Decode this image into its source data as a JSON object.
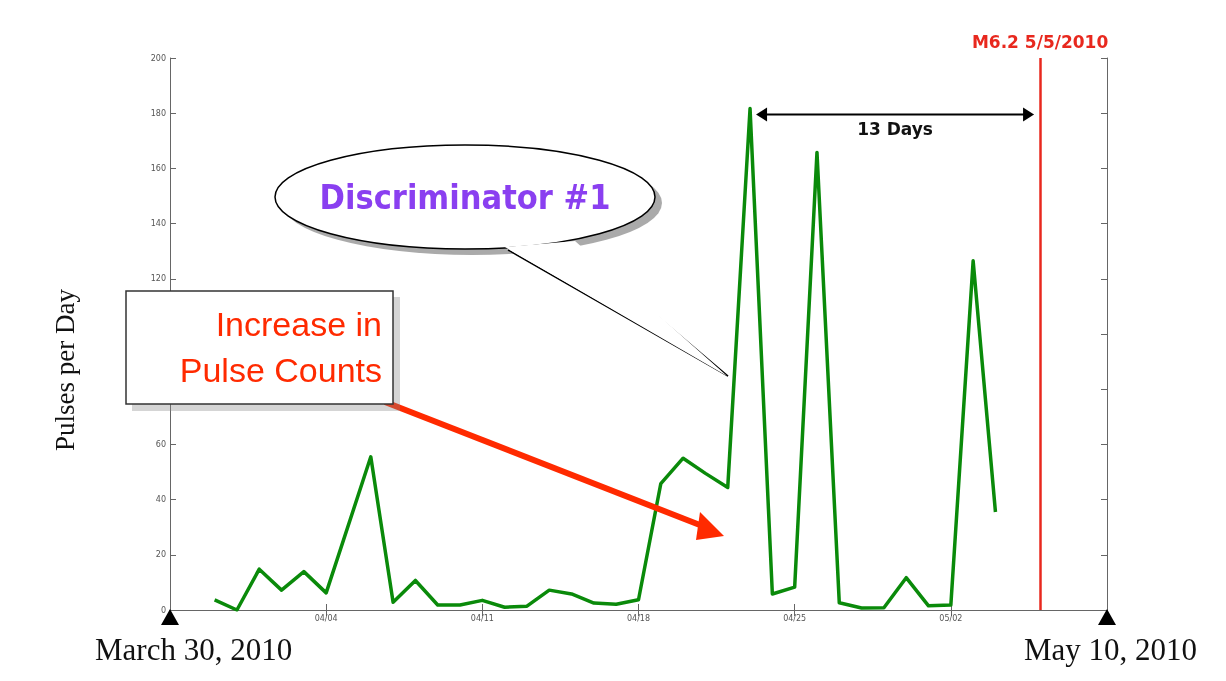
{
  "chart_data": {
    "type": "line",
    "ylabel": "Pulses per Day",
    "series": [
      {
        "color": "#0a8a0a",
        "x": [
          "2010-03-30",
          "2010-03-31",
          "2010-04-01",
          "2010-04-02",
          "2010-04-03",
          "2010-04-04",
          "2010-04-06",
          "2010-04-07",
          "2010-04-08",
          "2010-04-09",
          "2010-04-10",
          "2010-04-11",
          "2010-04-12",
          "2010-04-13",
          "2010-04-14",
          "2010-04-15",
          "2010-04-16",
          "2010-04-17",
          "2010-04-18",
          "2010-04-19",
          "2010-04-20",
          "2010-04-21",
          "2010-04-22",
          "2010-04-23",
          "2010-04-24",
          "2010-04-25",
          "2010-04-26",
          "2010-04-27",
          "2010-04-28",
          "2010-04-29",
          "2010-04-30",
          "2010-05-01",
          "2010-05-02",
          "2010-05-03",
          "2010-05-04"
        ],
        "values": [
          3.7,
          0,
          14.8,
          7.2,
          13.9,
          6.2,
          55.5,
          2.8,
          10.7,
          1.8,
          1.8,
          3.5,
          1,
          1.4,
          7.2,
          5.8,
          2.5,
          2.1,
          3.7,
          45.8,
          55,
          49.5,
          44.4,
          181.7,
          5.8,
          8.3,
          165.8,
          2.6,
          0.7,
          0.8,
          11.7,
          1.5,
          1.8,
          126.5,
          35.5
        ]
      }
    ],
    "xlim": [
      "2010-03-28",
      "2010-05-09"
    ],
    "xticks": [
      {
        "value": "2010-03-28",
        "label": null
      },
      {
        "value": "2010-04-04",
        "label": "04/04"
      },
      {
        "value": "2010-04-11",
        "label": "04/11"
      },
      {
        "value": "2010-04-18",
        "label": "04/18"
      },
      {
        "value": "2010-04-25",
        "label": "04/25"
      },
      {
        "value": "2010-05-02",
        "label": "05/02"
      },
      {
        "value": "2010-05-09",
        "label": null
      }
    ],
    "ylim": [
      0,
      200
    ],
    "yticks": [
      0,
      20,
      40,
      60,
      {
        "value": 80,
        "label": null
      },
      {
        "value": 100,
        "label": null
      },
      120,
      140,
      160,
      180,
      200
    ],
    "ref_lines": [
      {
        "axis": "x",
        "value": "2010-05-06",
        "label": "M6.2 5/5/2010",
        "color": "#e8281e"
      }
    ],
    "annotations": [
      "Discriminator #1",
      "Increase in Pulse Counts",
      "March 30, 2010",
      "May 10, 2010",
      "13 Days"
    ],
    "grid": false,
    "marker": "none",
    "line_style": "solid"
  }
}
